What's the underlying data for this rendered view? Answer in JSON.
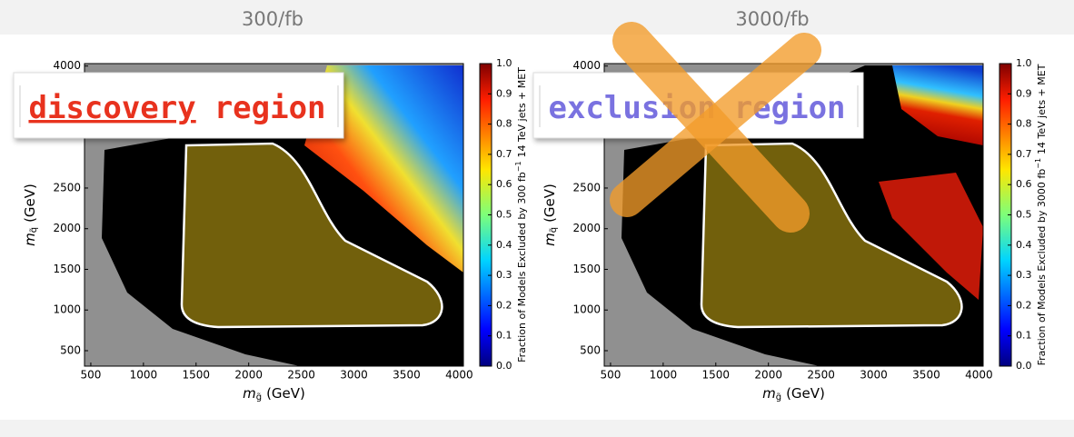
{
  "chart_data": [
    {
      "type": "hexbin",
      "title": "300/fb",
      "xlim": [
        440,
        4040
      ],
      "ylim": [
        310,
        4030
      ],
      "xticks": [
        500,
        1000,
        1500,
        2000,
        2500,
        3000,
        3500,
        4000
      ],
      "yticks": [
        500,
        1000,
        1500,
        2000,
        2500,
        4000
      ],
      "x_label": {
        "symbol": "m",
        "sub": "g̃",
        "unit": "(GeV)"
      },
      "y_label": {
        "symbol": "m",
        "sub": "q̃",
        "unit": "(GeV)"
      },
      "clim": [
        0,
        1
      ],
      "cticks": [
        {
          "value": 0,
          "label": "0.0"
        },
        {
          "value": 0.1,
          "label": "0.1"
        },
        {
          "value": 0.2,
          "label": "0.2"
        },
        {
          "value": 0.3,
          "label": "0.3"
        },
        {
          "value": 0.4,
          "label": "0.4"
        },
        {
          "value": 0.5,
          "label": "0.5"
        },
        {
          "value": 0.6,
          "label": "0.6"
        },
        {
          "value": 0.7,
          "label": "0.7"
        },
        {
          "value": 0.8,
          "label": "0.8"
        },
        {
          "value": 0.9,
          "label": "0.9"
        },
        {
          "value": 1,
          "label": "1.0"
        }
      ],
      "colorbar_label": {
        "text": "Fraction of Models Excluded by 300 fb",
        "sup": "−1",
        "rest": "14 TeV jets + MET"
      },
      "annotation": {
        "highlight": "discovery",
        "text": "region",
        "color": "#e8321e"
      }
    },
    {
      "type": "hexbin",
      "title": "3000/fb",
      "xlim": [
        440,
        4040
      ],
      "ylim": [
        310,
        4030
      ],
      "xticks": [
        500,
        1000,
        1500,
        2000,
        2500,
        3000,
        3500,
        4000
      ],
      "yticks": [
        500,
        1000,
        1500,
        2000,
        2500,
        4000
      ],
      "x_label": {
        "symbol": "m",
        "sub": "g̃",
        "unit": "(GeV)"
      },
      "y_label": {
        "symbol": "m",
        "sub": "q̃",
        "unit": "(GeV)"
      },
      "clim": [
        0,
        1
      ],
      "cticks": [
        {
          "value": 0,
          "label": "0.0"
        },
        {
          "value": 0.1,
          "label": "0.1"
        },
        {
          "value": 0.2,
          "label": "0.2"
        },
        {
          "value": 0.3,
          "label": "0.3"
        },
        {
          "value": 0.4,
          "label": "0.4"
        },
        {
          "value": 0.5,
          "label": "0.5"
        },
        {
          "value": 0.6,
          "label": "0.6"
        },
        {
          "value": 0.7,
          "label": "0.7"
        },
        {
          "value": 0.8,
          "label": "0.8"
        },
        {
          "value": 0.9,
          "label": "0.9"
        },
        {
          "value": 1,
          "label": "1.0"
        }
      ],
      "colorbar_label": {
        "text": "Fraction of Models Excluded by 3000 fb",
        "sup": "−1",
        "rest": "14 TeV jets + MET"
      },
      "annotation": {
        "highlight": "exclusion",
        "text": "region",
        "color": "#7a72e0"
      }
    }
  ]
}
